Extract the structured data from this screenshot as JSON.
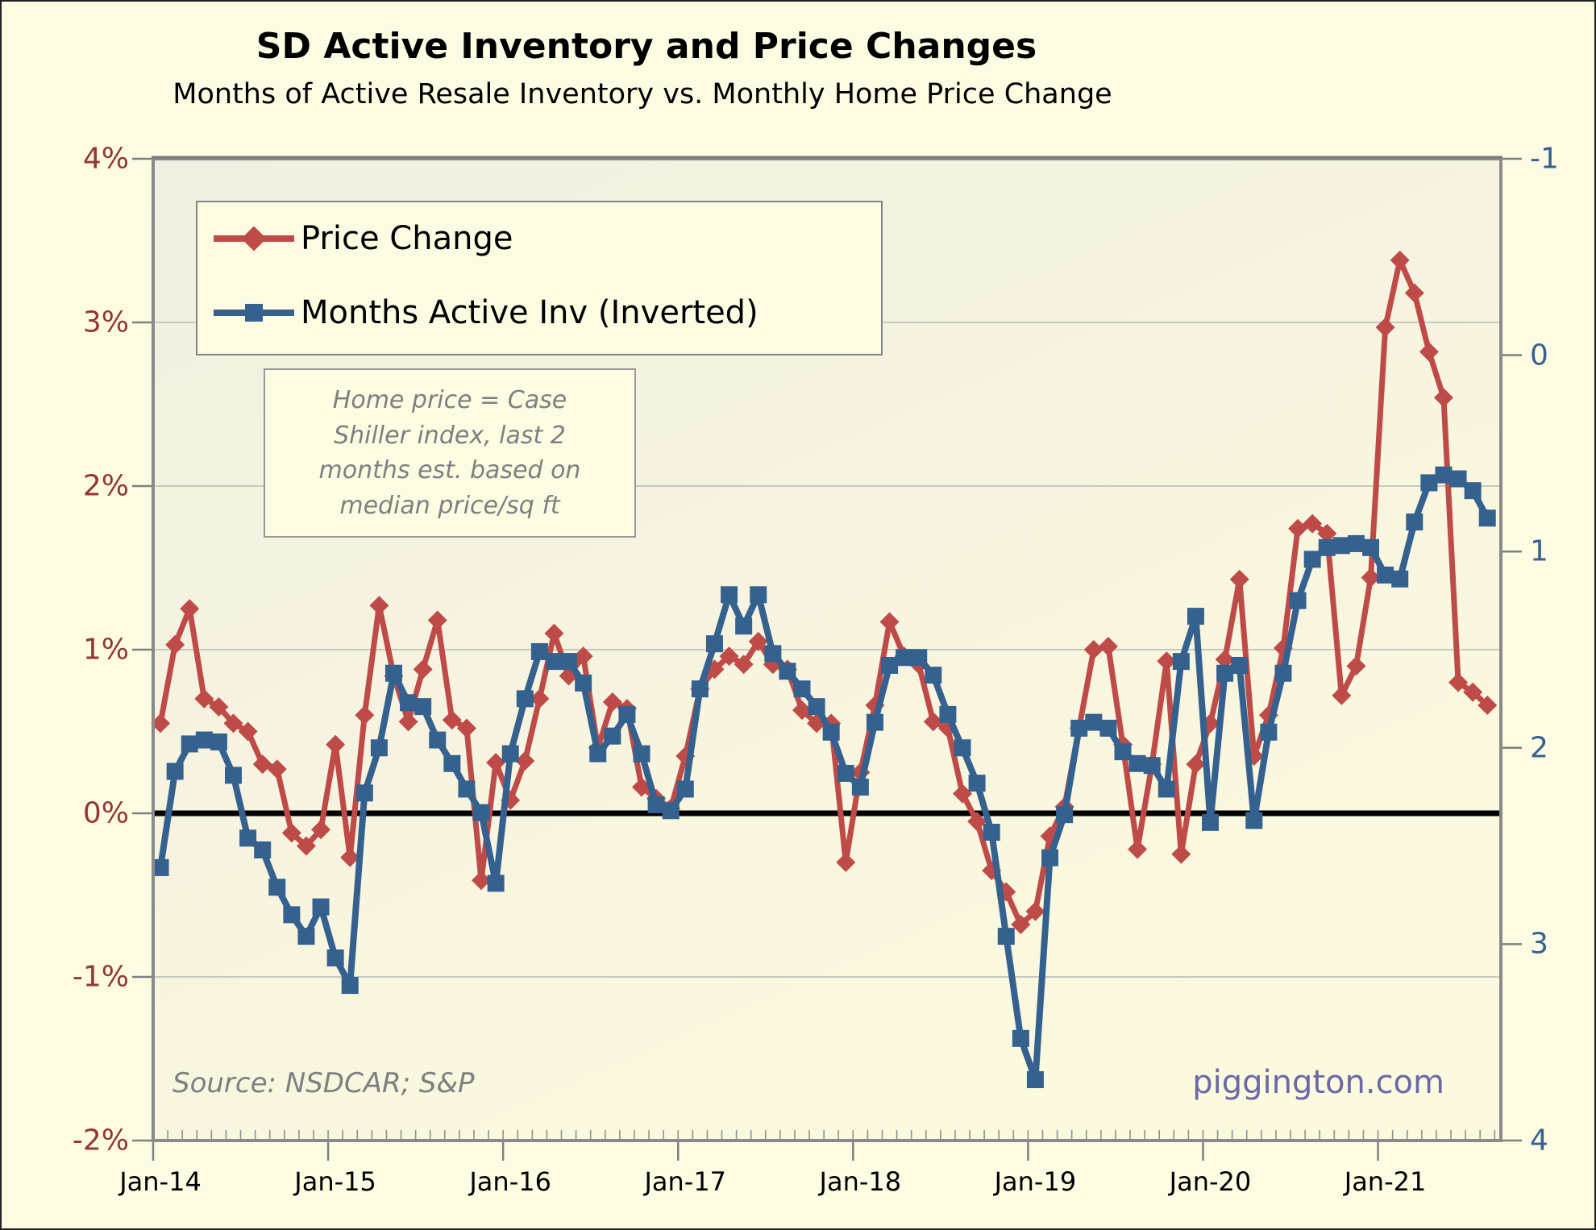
{
  "title": "SD Active Inventory and Price Changes",
  "subtitle": "Months of Active Resale Inventory vs. Monthly Home Price Change",
  "legend": [
    {
      "label": "Price Change",
      "color": "#BE4B48",
      "marker": "diamond"
    },
    {
      "label": "Months Active Inv (Inverted)",
      "color": "#35618F",
      "marker": "square"
    }
  ],
  "annotation": "Home price = Case\nShiller index, last 2\nmonths est. based on\nmedian price/sq ft",
  "source": "Source: NSDCAR; S&P",
  "watermark": "piggington.com",
  "colors": {
    "price_line": "#BE4B48",
    "inventory_line": "#35618F",
    "left_axis_labels": "#943634",
    "right_axis_labels": "#376092",
    "gridline": "#C8C8BE",
    "zero_line": "#000000",
    "frame": "#8A8A8A",
    "outer_background": "#FDFCE2",
    "plot_background_top": "#F1EFE1",
    "plot_background_bottom": "#FBF9DE"
  },
  "chart_data": {
    "type": "line",
    "x_start": "Jan-14",
    "x_interval": "month",
    "x_tick_labels": [
      "Jan-14",
      "Jan-15",
      "Jan-16",
      "Jan-17",
      "Jan-18",
      "Jan-19",
      "Jan-20",
      "Jan-21"
    ],
    "left_axis": {
      "title": "",
      "min": -2,
      "max": 4,
      "tick_labels": [
        "4%",
        "3%",
        "2%",
        "1%",
        "0%",
        "-1%",
        "-2%"
      ],
      "unit": "percent"
    },
    "right_axis": {
      "title": "",
      "min": -1,
      "max": 4,
      "inverted_display": true,
      "tick_labels": [
        "-1",
        "0",
        "1",
        "2",
        "3",
        "4"
      ],
      "unit": "months"
    },
    "grid": "horizontal-1pct",
    "legend_position": "top-left-inside",
    "series": [
      {
        "name": "Price Change",
        "axis": "left",
        "values": [
          0.55,
          1.03,
          1.25,
          0.7,
          0.65,
          0.55,
          0.5,
          0.3,
          0.27,
          -0.12,
          -0.2,
          -0.1,
          0.42,
          -0.27,
          0.6,
          1.27,
          0.84,
          0.56,
          0.88,
          1.18,
          0.57,
          0.52,
          -0.41,
          0.31,
          0.08,
          0.32,
          0.7,
          1.1,
          0.84,
          0.96,
          0.4,
          0.68,
          0.64,
          0.16,
          0.09,
          0.03,
          0.35,
          0.76,
          0.88,
          0.96,
          0.91,
          1.05,
          0.91,
          0.88,
          0.63,
          0.55,
          0.55,
          -0.3,
          0.25,
          0.66,
          1.17,
          0.96,
          0.91,
          0.56,
          0.52,
          0.12,
          -0.05,
          -0.35,
          -0.48,
          -0.68,
          -0.6,
          -0.14,
          0.04,
          0.52,
          1.0,
          1.02,
          0.42,
          -0.22,
          0.3,
          0.93,
          -0.25,
          0.3,
          0.55,
          0.94,
          1.43,
          0.35,
          0.6,
          1.01,
          1.74,
          1.77,
          1.71,
          0.72,
          0.9,
          1.44,
          2.97,
          3.38,
          3.18,
          2.82,
          2.54,
          0.8,
          0.74,
          0.66
        ]
      },
      {
        "name": "Months Active Inv (Inverted)",
        "axis": "right",
        "values": [
          2.61,
          2.12,
          1.98,
          1.96,
          1.97,
          2.14,
          2.46,
          2.52,
          2.71,
          2.85,
          2.96,
          2.81,
          3.07,
          3.21,
          2.23,
          2.0,
          1.62,
          1.77,
          1.79,
          1.96,
          2.08,
          2.21,
          2.33,
          2.69,
          2.03,
          1.75,
          1.51,
          1.56,
          1.56,
          1.67,
          2.03,
          1.94,
          1.83,
          2.03,
          2.29,
          2.32,
          2.21,
          1.7,
          1.47,
          1.22,
          1.38,
          1.22,
          1.52,
          1.61,
          1.7,
          1.79,
          1.92,
          2.13,
          2.2,
          1.87,
          1.58,
          1.54,
          1.54,
          1.63,
          1.83,
          2.0,
          2.18,
          2.43,
          2.96,
          3.48,
          3.69,
          2.56,
          2.34,
          1.9,
          1.87,
          1.9,
          2.02,
          2.08,
          2.09,
          2.21,
          1.56,
          1.33,
          2.38,
          1.62,
          1.58,
          2.37,
          1.92,
          1.62,
          1.25,
          1.04,
          0.98,
          0.97,
          0.96,
          0.98,
          1.12,
          1.14,
          0.85,
          0.65,
          0.61,
          0.63,
          0.69,
          0.83
        ]
      }
    ]
  }
}
